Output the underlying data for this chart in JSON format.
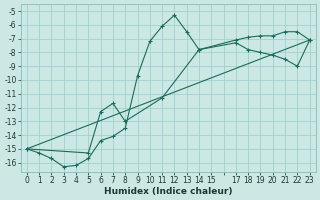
{
  "xlabel": "Humidex (Indice chaleur)",
  "background_color": "#cce8e4",
  "grid_color": "#99cccc",
  "line_color": "#1a6b5a",
  "xlim": [
    -0.5,
    23.5
  ],
  "ylim": [
    -16.7,
    -4.5
  ],
  "yticks": [
    -16,
    -15,
    -14,
    -13,
    -12,
    -11,
    -10,
    -9,
    -8,
    -7,
    -6,
    -5
  ],
  "xtick_labels": [
    "0",
    "1",
    "2",
    "3",
    "4",
    "5",
    "6",
    "7",
    "8",
    "9",
    "10",
    "11",
    "12",
    "13",
    "14",
    "15",
    "",
    "17",
    "18",
    "19",
    "20",
    "21",
    "22",
    "23"
  ],
  "xtick_positions": [
    0,
    1,
    2,
    3,
    4,
    5,
    6,
    7,
    8,
    9,
    10,
    11,
    12,
    13,
    14,
    15,
    16,
    17,
    18,
    19,
    20,
    21,
    22,
    23
  ],
  "line1_x": [
    0,
    1,
    2,
    3,
    4,
    5,
    6,
    7,
    8,
    9,
    10,
    11,
    12,
    13,
    14,
    17,
    18,
    19,
    20,
    21,
    22,
    23
  ],
  "line1_y": [
    -15.0,
    -15.3,
    -15.7,
    -16.3,
    -16.2,
    -15.7,
    -14.4,
    -14.1,
    -13.5,
    -9.7,
    -7.2,
    -6.1,
    -5.3,
    -6.5,
    -7.8,
    -7.1,
    -6.9,
    -6.8,
    -6.8,
    -6.5,
    -6.5,
    -7.1
  ],
  "line2_x": [
    0,
    5,
    6,
    7,
    8,
    11,
    14,
    17,
    18,
    19,
    20,
    21,
    22,
    23
  ],
  "line2_y": [
    -15.0,
    -15.3,
    -12.3,
    -11.7,
    -13.0,
    -11.3,
    -7.8,
    -7.3,
    -7.8,
    -8.0,
    -8.2,
    -8.5,
    -9.0,
    -7.1
  ],
  "line3_x": [
    0,
    23
  ],
  "line3_y": [
    -15.0,
    -7.1
  ]
}
